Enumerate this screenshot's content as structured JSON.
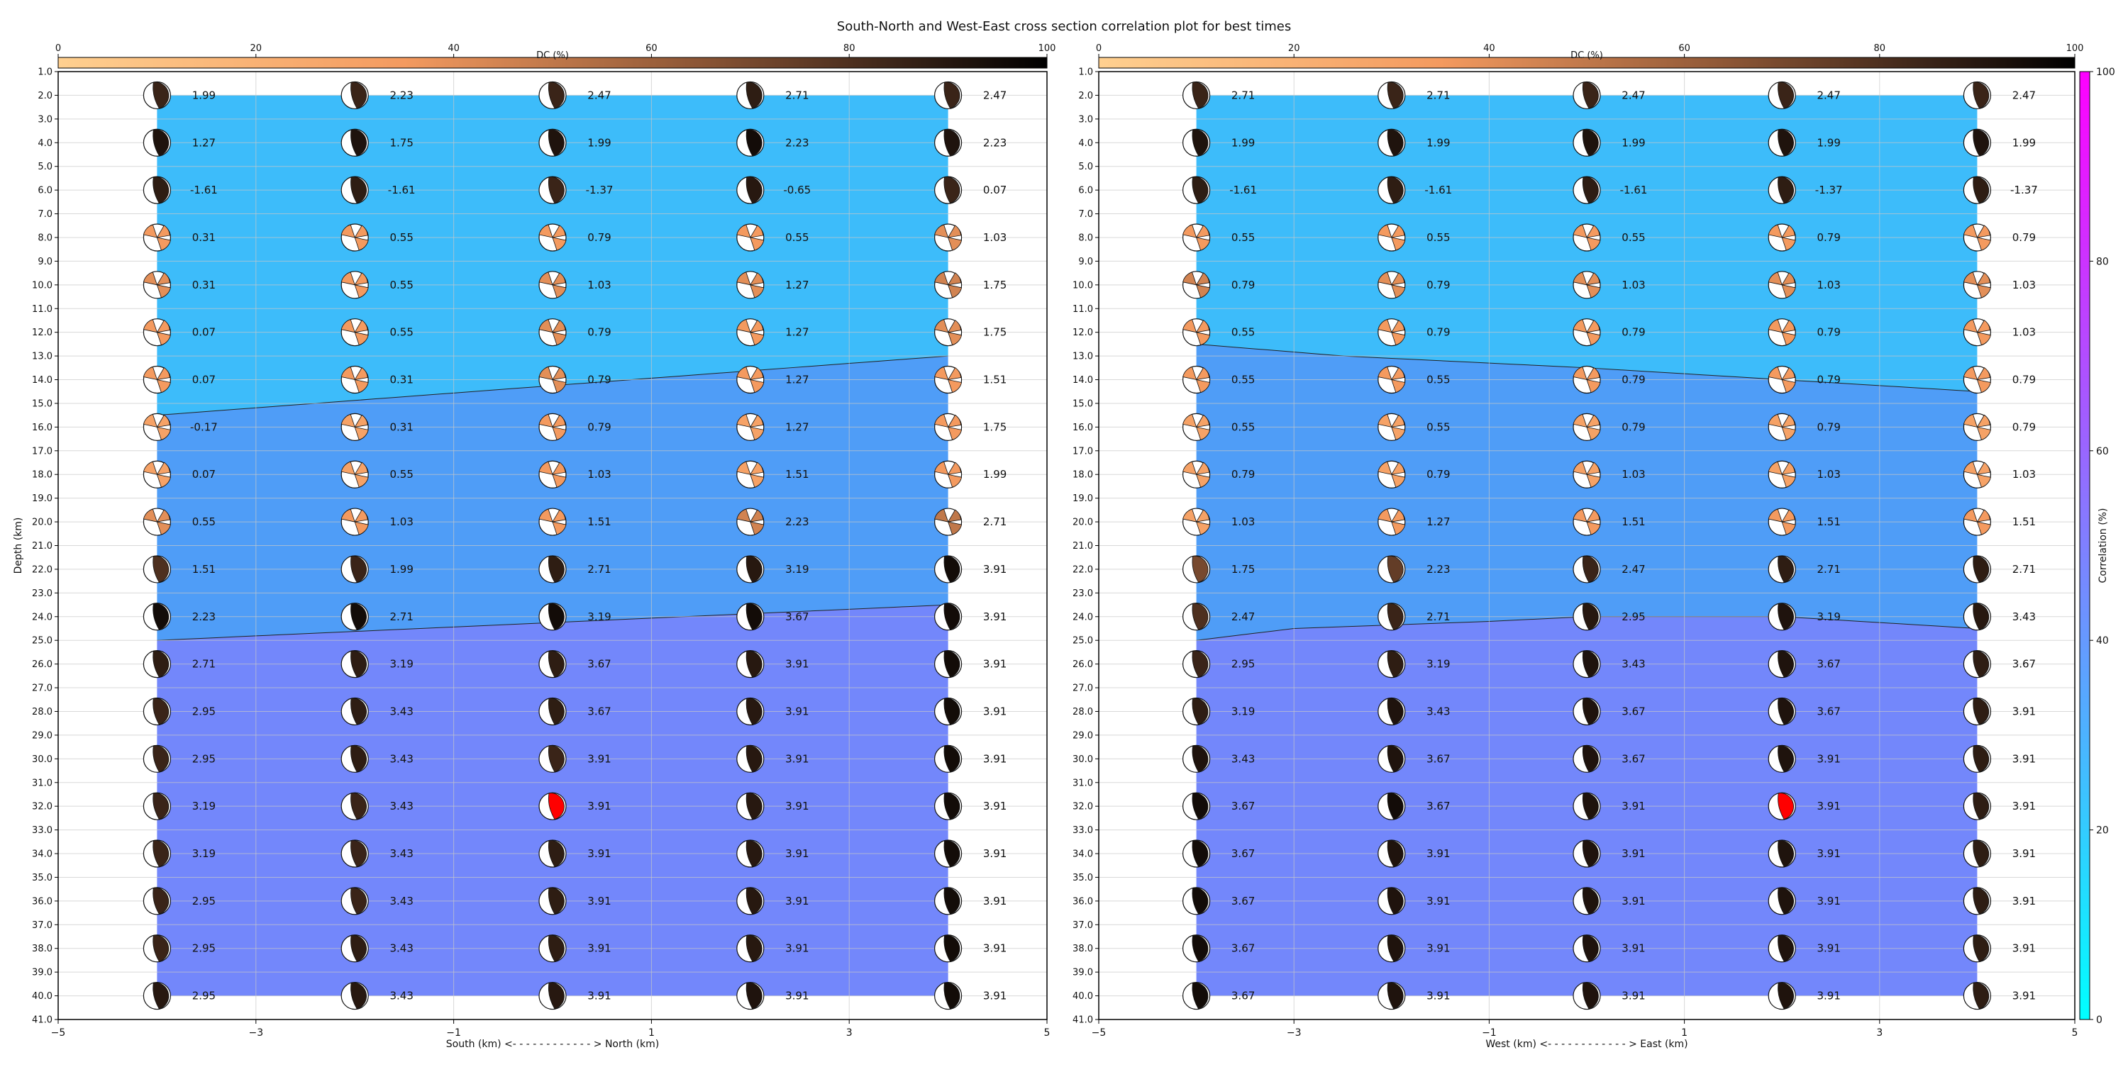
{
  "figure": {
    "title": "South-North and West-East cross section correlation plot for best times"
  },
  "dc_colorbar": {
    "label": "DC (%)",
    "ticks": [
      "0",
      "20",
      "40",
      "60",
      "80",
      "100"
    ]
  },
  "correlation_colorbar": {
    "label": "Correlation (%)",
    "ticks": [
      "0",
      "20",
      "40",
      "60",
      "80",
      "100"
    ]
  },
  "colors": {
    "band_shallow": "#3dbcfa",
    "band_middle": "#4f9df7",
    "band_deep": "#7387fb",
    "best_solution": "#ff0000",
    "grid": "#c8c8c8"
  },
  "chart_data": [
    {
      "type": "scatter",
      "name": "south-north",
      "xlabel": "South (km) <- - - - - - - - - - - - > North (km)",
      "ylabel": "Depth (km)",
      "xlim": [
        -5,
        5
      ],
      "ylim": [
        41,
        1
      ],
      "xticks": [
        "−5",
        "−3",
        "−1",
        "1",
        "3",
        "5"
      ],
      "yticks": [
        "1.0",
        "2.0",
        "3.0",
        "4.0",
        "5.0",
        "6.0",
        "7.0",
        "8.0",
        "9.0",
        "10.0",
        "11.0",
        "12.0",
        "13.0",
        "14.0",
        "15.0",
        "16.0",
        "17.0",
        "18.0",
        "19.0",
        "20.0",
        "21.0",
        "22.0",
        "23.0",
        "24.0",
        "25.0",
        "26.0",
        "27.0",
        "28.0",
        "29.0",
        "30.0",
        "31.0",
        "32.0",
        "33.0",
        "34.0",
        "35.0",
        "36.0",
        "37.0",
        "38.0",
        "39.0",
        "40.0",
        "41.0"
      ],
      "x": [
        -4,
        -2,
        0,
        2,
        4
      ],
      "depths": [
        2,
        4,
        6,
        8,
        10,
        12,
        14,
        16,
        18,
        20,
        22,
        24,
        26,
        28,
        30,
        32,
        34,
        36,
        38,
        40
      ],
      "time_shifts": [
        [
          "1.99",
          "2.23",
          "2.47",
          "2.71",
          "2.47"
        ],
        [
          "1.27",
          "1.75",
          "1.99",
          "2.23",
          "2.23"
        ],
        [
          "-1.61",
          "-1.61",
          "-1.37",
          "-0.65",
          "0.07"
        ],
        [
          "0.31",
          "0.55",
          "0.79",
          "0.55",
          "1.03"
        ],
        [
          "0.31",
          "0.55",
          "1.03",
          "1.27",
          "1.75"
        ],
        [
          "0.07",
          "0.55",
          "0.79",
          "1.27",
          "1.75"
        ],
        [
          "0.07",
          "0.31",
          "0.79",
          "1.27",
          "1.51"
        ],
        [
          "-0.17",
          "0.31",
          "0.79",
          "1.27",
          "1.75"
        ],
        [
          "0.07",
          "0.55",
          "1.03",
          "1.51",
          "1.99"
        ],
        [
          "0.55",
          "1.03",
          "1.51",
          "2.23",
          "2.71"
        ],
        [
          "1.51",
          "1.99",
          "2.71",
          "3.19",
          "3.91"
        ],
        [
          "2.23",
          "2.71",
          "3.19",
          "3.67",
          "3.91"
        ],
        [
          "2.71",
          "3.19",
          "3.67",
          "3.91",
          "3.91"
        ],
        [
          "2.95",
          "3.43",
          "3.67",
          "3.91",
          "3.91"
        ],
        [
          "2.95",
          "3.43",
          "3.91",
          "3.91",
          "3.91"
        ],
        [
          "3.19",
          "3.43",
          "3.91",
          "3.91",
          "3.91"
        ],
        [
          "3.19",
          "3.43",
          "3.91",
          "3.91",
          "3.91"
        ],
        [
          "2.95",
          "3.43",
          "3.91",
          "3.91",
          "3.91"
        ],
        [
          "2.95",
          "3.43",
          "3.91",
          "3.91",
          "3.91"
        ],
        [
          "2.95",
          "3.43",
          "3.91",
          "3.91",
          "3.91"
        ]
      ],
      "dc_percent": [
        [
          85,
          85,
          85,
          88,
          85
        ],
        [
          92,
          92,
          92,
          95,
          92
        ],
        [
          88,
          88,
          85,
          90,
          85
        ],
        [
          35,
          35,
          35,
          35,
          40
        ],
        [
          40,
          35,
          40,
          40,
          45
        ],
        [
          35,
          35,
          40,
          35,
          40
        ],
        [
          35,
          35,
          40,
          35,
          35
        ],
        [
          30,
          30,
          35,
          30,
          35
        ],
        [
          30,
          30,
          35,
          30,
          35
        ],
        [
          40,
          35,
          35,
          45,
          50
        ],
        [
          80,
          85,
          88,
          90,
          95
        ],
        [
          95,
          95,
          95,
          95,
          95
        ],
        [
          88,
          88,
          88,
          90,
          95
        ],
        [
          85,
          88,
          88,
          90,
          95
        ],
        [
          85,
          88,
          85,
          90,
          95
        ],
        [
          85,
          85,
          0,
          90,
          95
        ],
        [
          85,
          85,
          88,
          90,
          95
        ],
        [
          85,
          85,
          88,
          90,
          95
        ],
        [
          85,
          88,
          88,
          90,
          95
        ],
        [
          90,
          90,
          90,
          92,
          95
        ]
      ],
      "best_solution": {
        "x": 0,
        "depth": 32
      },
      "correlation_band_boundaries": [
        {
          "x": [
            -4,
            4
          ],
          "depth": [
            15.5,
            13.0
          ]
        },
        {
          "x": [
            -4,
            4
          ],
          "depth": [
            25.0,
            23.5
          ]
        }
      ],
      "correlation_band_extent": {
        "x": [
          -4,
          4
        ],
        "depth": [
          2,
          40
        ]
      }
    },
    {
      "type": "scatter",
      "name": "west-east",
      "xlabel": "West (km) <- - - - - - - - - - - - > East (km)",
      "ylabel": "",
      "xlim": [
        -5,
        5
      ],
      "ylim": [
        41,
        1
      ],
      "xticks": [
        "−5",
        "−3",
        "−1",
        "1",
        "3",
        "5"
      ],
      "yticks": [
        "1.0",
        "2.0",
        "3.0",
        "4.0",
        "5.0",
        "6.0",
        "7.0",
        "8.0",
        "9.0",
        "10.0",
        "11.0",
        "12.0",
        "13.0",
        "14.0",
        "15.0",
        "16.0",
        "17.0",
        "18.0",
        "19.0",
        "20.0",
        "21.0",
        "22.0",
        "23.0",
        "24.0",
        "25.0",
        "26.0",
        "27.0",
        "28.0",
        "29.0",
        "30.0",
        "31.0",
        "32.0",
        "33.0",
        "34.0",
        "35.0",
        "36.0",
        "37.0",
        "38.0",
        "39.0",
        "40.0",
        "41.0"
      ],
      "x": [
        -4,
        -2,
        0,
        2,
        4
      ],
      "depths": [
        2,
        4,
        6,
        8,
        10,
        12,
        14,
        16,
        18,
        20,
        22,
        24,
        26,
        28,
        30,
        32,
        34,
        36,
        38,
        40
      ],
      "time_shifts": [
        [
          "2.71",
          "2.71",
          "2.47",
          "2.47",
          "2.47"
        ],
        [
          "1.99",
          "1.99",
          "1.99",
          "1.99",
          "1.99"
        ],
        [
          "-1.61",
          "-1.61",
          "-1.61",
          "-1.37",
          "-1.37"
        ],
        [
          "0.55",
          "0.55",
          "0.55",
          "0.79",
          "0.79"
        ],
        [
          "0.79",
          "0.79",
          "1.03",
          "1.03",
          "1.03"
        ],
        [
          "0.55",
          "0.79",
          "0.79",
          "0.79",
          "1.03"
        ],
        [
          "0.55",
          "0.55",
          "0.79",
          "0.79",
          "0.79"
        ],
        [
          "0.55",
          "0.55",
          "0.79",
          "0.79",
          "0.79"
        ],
        [
          "0.79",
          "0.79",
          "1.03",
          "1.03",
          "1.03"
        ],
        [
          "1.03",
          "1.27",
          "1.51",
          "1.51",
          "1.51"
        ],
        [
          "1.75",
          "2.23",
          "2.47",
          "2.71",
          "2.71"
        ],
        [
          "2.47",
          "2.71",
          "2.95",
          "3.19",
          "3.43"
        ],
        [
          "2.95",
          "3.19",
          "3.43",
          "3.67",
          "3.67"
        ],
        [
          "3.19",
          "3.43",
          "3.67",
          "3.67",
          "3.91"
        ],
        [
          "3.43",
          "3.67",
          "3.67",
          "3.91",
          "3.91"
        ],
        [
          "3.67",
          "3.67",
          "3.91",
          "3.91",
          "3.91"
        ],
        [
          "3.67",
          "3.91",
          "3.91",
          "3.91",
          "3.91"
        ],
        [
          "3.67",
          "3.91",
          "3.91",
          "3.91",
          "3.91"
        ],
        [
          "3.67",
          "3.91",
          "3.91",
          "3.91",
          "3.91"
        ],
        [
          "3.67",
          "3.91",
          "3.91",
          "3.91",
          "3.91"
        ]
      ],
      "dc_percent": [
        [
          85,
          85,
          85,
          85,
          85
        ],
        [
          92,
          92,
          92,
          92,
          92
        ],
        [
          88,
          88,
          88,
          88,
          88
        ],
        [
          35,
          35,
          35,
          35,
          35
        ],
        [
          45,
          40,
          40,
          40,
          40
        ],
        [
          35,
          35,
          35,
          35,
          35
        ],
        [
          35,
          35,
          35,
          35,
          35
        ],
        [
          30,
          30,
          30,
          30,
          30
        ],
        [
          30,
          30,
          30,
          30,
          30
        ],
        [
          30,
          35,
          35,
          35,
          35
        ],
        [
          70,
          75,
          85,
          88,
          88
        ],
        [
          80,
          85,
          90,
          92,
          90
        ],
        [
          85,
          88,
          92,
          92,
          88
        ],
        [
          88,
          92,
          92,
          92,
          88
        ],
        [
          92,
          92,
          92,
          92,
          88
        ],
        [
          95,
          95,
          92,
          0,
          88
        ],
        [
          95,
          92,
          92,
          92,
          88
        ],
        [
          95,
          92,
          92,
          92,
          88
        ],
        [
          95,
          92,
          92,
          92,
          88
        ],
        [
          95,
          92,
          92,
          92,
          88
        ]
      ],
      "best_solution": {
        "x": 2,
        "depth": 32
      },
      "correlation_band_boundaries": [
        {
          "x": [
            -4,
            -2.5,
            0,
            2,
            4
          ],
          "depth": [
            12.5,
            13.0,
            13.5,
            14.0,
            14.5
          ]
        },
        {
          "x": [
            -4,
            -3,
            -1,
            0,
            2,
            4
          ],
          "depth": [
            25.0,
            24.5,
            24.2,
            24.0,
            24.0,
            24.5
          ]
        }
      ],
      "correlation_band_extent": {
        "x": [
          -4,
          4
        ],
        "depth": [
          2,
          40
        ]
      }
    }
  ]
}
